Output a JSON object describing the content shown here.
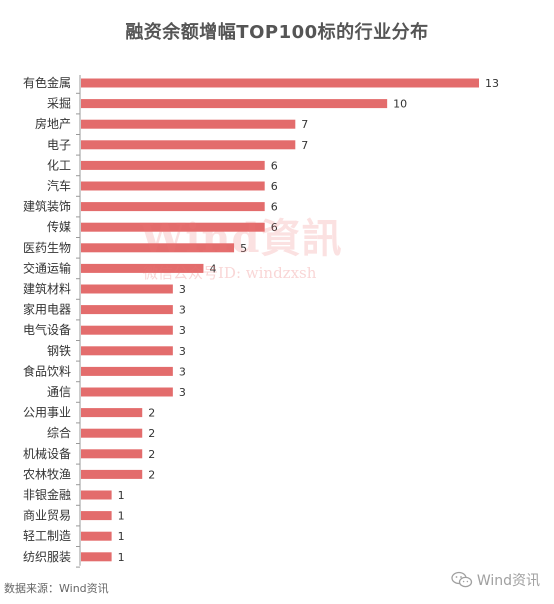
{
  "chart_data": {
    "type": "bar",
    "orientation": "horizontal",
    "title": "融资余额增幅TOP100标的行业分布",
    "categories": [
      "有色金属",
      "采掘",
      "房地产",
      "电子",
      "化工",
      "汽车",
      "建筑装饰",
      "传媒",
      "医药生物",
      "交通运输",
      "建筑材料",
      "家用电器",
      "电气设备",
      "钢铁",
      "食品饮料",
      "通信",
      "公用事业",
      "综合",
      "机械设备",
      "农林牧渔",
      "非银金融",
      "商业贸易",
      "轻工制造",
      "纺织服装"
    ],
    "values": [
      13,
      10,
      7,
      7,
      6,
      6,
      6,
      6,
      5,
      4,
      3,
      3,
      3,
      3,
      3,
      3,
      2,
      2,
      2,
      2,
      1,
      1,
      1,
      1
    ],
    "xlim": [
      0,
      13
    ],
    "grid": false,
    "bar_color": "#e36c6c",
    "data_labels": true
  },
  "watermark": {
    "main": "Wind資訊",
    "sub": "微信公众号ID: windzxsh"
  },
  "source": "数据来源：Wind资讯",
  "brand": "Wind资讯"
}
